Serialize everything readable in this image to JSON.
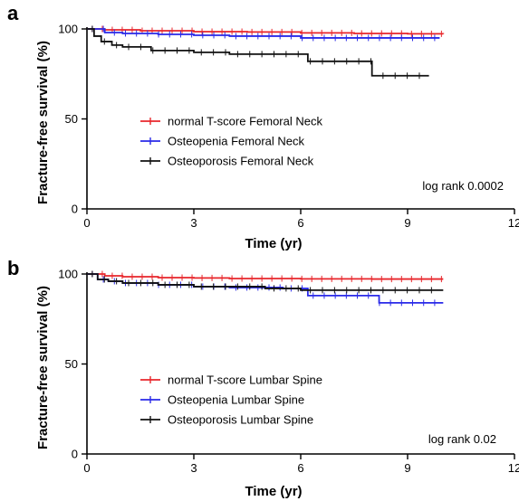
{
  "chart_data": [
    {
      "panel": "a",
      "type": "line",
      "xlabel": "Time (yr)",
      "ylabel": "Fracture-free survival (%)",
      "xlim": [
        0,
        12
      ],
      "ylim": [
        0,
        100
      ],
      "xticks": [
        0,
        3,
        6,
        9,
        12
      ],
      "yticks": [
        0,
        50,
        100
      ],
      "annotation": "log rank 0.0002",
      "legend_position": "center",
      "series": [
        {
          "name": "normal T-score Femoral Neck",
          "color": "#e8262b",
          "x": [
            0,
            0.5,
            1.5,
            3,
            4.5,
            6,
            7.5,
            9,
            10
          ],
          "y": [
            100,
            99.5,
            99,
            98.5,
            98.3,
            97.8,
            97.5,
            97.3,
            97.2
          ]
        },
        {
          "name": "Osteopenia Femoral Neck",
          "color": "#2a2ae8",
          "x": [
            0,
            0.5,
            1.0,
            2.0,
            3.0,
            4.0,
            5.0,
            6.0,
            7.0,
            8.0,
            9.0,
            9.9
          ],
          "y": [
            100,
            98,
            97.5,
            97,
            96.5,
            96,
            96,
            95,
            95,
            95,
            95,
            95
          ]
        },
        {
          "name": "Osteoporosis Femoral Neck",
          "color": "#111111",
          "x": [
            0,
            0.2,
            0.4,
            0.7,
            1.0,
            1.8,
            3.0,
            4.0,
            6.0,
            6.2,
            8.0,
            9.6
          ],
          "y": [
            100,
            96,
            93,
            91,
            90,
            88,
            87,
            86,
            86,
            82,
            74,
            74
          ]
        }
      ]
    },
    {
      "panel": "b",
      "type": "line",
      "xlabel": "Time (yr)",
      "ylabel": "Fracture-free survival (%)",
      "xlim": [
        0,
        12
      ],
      "ylim": [
        0,
        100
      ],
      "xticks": [
        0,
        3,
        6,
        9,
        12
      ],
      "yticks": [
        0,
        50,
        100
      ],
      "annotation": "log rank 0.02",
      "legend_position": "center",
      "series": [
        {
          "name": "normal T-score Lumbar Spine",
          "color": "#e8262b",
          "x": [
            0,
            0.5,
            1.0,
            2.0,
            3.0,
            4.0,
            6.0,
            8.0,
            10.0
          ],
          "y": [
            100,
            99,
            98.5,
            98,
            97.8,
            97.5,
            97.3,
            97.2,
            97.2
          ]
        },
        {
          "name": "Osteopenia Lumbar Spine",
          "color": "#2a2ae8",
          "x": [
            0,
            0.3,
            0.6,
            1.0,
            2.0,
            3.0,
            4.0,
            5.5,
            6.2,
            7.0,
            8.2,
            10.0
          ],
          "y": [
            100,
            97,
            96,
            95,
            94,
            93,
            92.5,
            92,
            88,
            88,
            84,
            84
          ]
        },
        {
          "name": "Osteoporosis Lumbar Spine",
          "color": "#111111",
          "x": [
            0,
            0.3,
            0.6,
            1.0,
            2.0,
            3.0,
            5.0,
            6.0,
            7.0,
            9.0,
            10.0
          ],
          "y": [
            100,
            97,
            96,
            95,
            94,
            93,
            92,
            91,
            91,
            91,
            91
          ]
        }
      ]
    }
  ]
}
